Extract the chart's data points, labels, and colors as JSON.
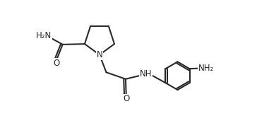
{
  "bg": "#ffffff",
  "lc": "#2a2a2a",
  "lw": 1.5,
  "fs": 8.5,
  "fig_w": 3.81,
  "fig_h": 1.64,
  "dpi": 100,
  "xlim": [
    0,
    10
  ],
  "ylim": [
    0,
    4.3
  ]
}
